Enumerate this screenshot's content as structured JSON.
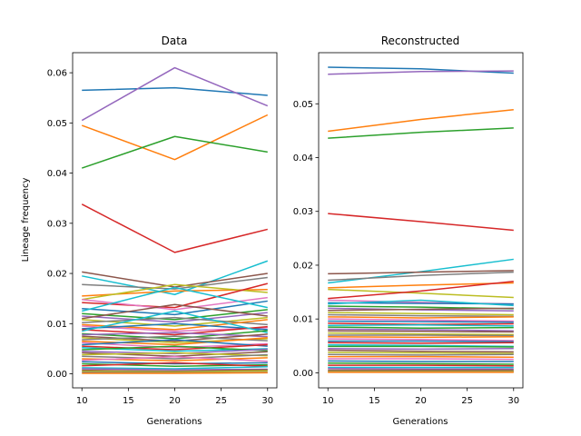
{
  "figure": {
    "background": "#ffffff"
  },
  "chart_data": [
    {
      "type": "line",
      "title": "Data",
      "xlabel": "Generations",
      "ylabel": "Lineage frequency",
      "x": [
        10,
        20,
        30
      ],
      "xlim": [
        9,
        31
      ],
      "ylim": [
        -0.0028,
        0.064
      ],
      "xticks": [
        "10",
        "15",
        "20",
        "25",
        "30"
      ],
      "yticks": [
        "0.00",
        "0.01",
        "0.02",
        "0.03",
        "0.04",
        "0.05",
        "0.06"
      ],
      "grid": false,
      "legend": "none",
      "series": [
        {
          "color": "#1f77b4",
          "values": [
            0.0565,
            0.057,
            0.0555
          ]
        },
        {
          "color": "#9467bd",
          "values": [
            0.0505,
            0.061,
            0.0534
          ]
        },
        {
          "color": "#ff7f0e",
          "values": [
            0.0495,
            0.0427,
            0.0516
          ]
        },
        {
          "color": "#2ca02c",
          "values": [
            0.041,
            0.0473,
            0.0442
          ]
        },
        {
          "color": "#d62728",
          "values": [
            0.0338,
            0.0242,
            0.0288
          ]
        },
        {
          "color": "#17becf",
          "values": [
            0.0195,
            0.0158,
            0.0225
          ]
        },
        {
          "color": "#8c564b",
          "values": [
            0.0203,
            0.0173,
            0.02
          ]
        },
        {
          "color": "#7f7f7f",
          "values": [
            0.0178,
            0.0169,
            0.0192
          ]
        },
        {
          "color": "#ff7f0e",
          "values": [
            0.0155,
            0.0165,
            0.0168
          ]
        },
        {
          "color": "#bcbd22",
          "values": [
            0.0148,
            0.0178,
            0.0162
          ]
        },
        {
          "color": "#d62728",
          "values": [
            0.0142,
            0.0132,
            0.018
          ]
        },
        {
          "color": "#e377c2",
          "values": [
            0.0148,
            0.0128,
            0.0152
          ]
        },
        {
          "color": "#1f77b4",
          "values": [
            0.013,
            0.0118,
            0.0145
          ]
        },
        {
          "color": "#17becf",
          "values": [
            0.0125,
            0.0172,
            0.0132
          ]
        },
        {
          "color": "#2ca02c",
          "values": [
            0.012,
            0.0108,
            0.0128
          ]
        },
        {
          "color": "#9467bd",
          "values": [
            0.0115,
            0.0103,
            0.0122
          ]
        },
        {
          "color": "#8c564b",
          "values": [
            0.011,
            0.0138,
            0.0115
          ]
        },
        {
          "color": "#bcbd22",
          "values": [
            0.0108,
            0.0095,
            0.0112
          ]
        },
        {
          "color": "#7f7f7f",
          "values": [
            0.0102,
            0.0112,
            0.0098
          ]
        },
        {
          "color": "#ff7f0e",
          "values": [
            0.0098,
            0.0088,
            0.0108
          ]
        },
        {
          "color": "#e377c2",
          "values": [
            0.0095,
            0.0085,
            0.0092
          ]
        },
        {
          "color": "#1f77b4",
          "values": [
            0.009,
            0.01,
            0.0088
          ]
        },
        {
          "color": "#d62728",
          "values": [
            0.0088,
            0.0078,
            0.0094
          ]
        },
        {
          "color": "#17becf",
          "values": [
            0.0085,
            0.0125,
            0.0082
          ]
        },
        {
          "color": "#2ca02c",
          "values": [
            0.008,
            0.007,
            0.0086
          ]
        },
        {
          "color": "#9467bd",
          "values": [
            0.0078,
            0.0082,
            0.0074
          ]
        },
        {
          "color": "#8c564b",
          "values": [
            0.0075,
            0.0065,
            0.0079
          ]
        },
        {
          "color": "#bcbd22",
          "values": [
            0.0072,
            0.0062,
            0.007
          ]
        },
        {
          "color": "#7f7f7f",
          "values": [
            0.0068,
            0.0075,
            0.0066
          ]
        },
        {
          "color": "#ff7f0e",
          "values": [
            0.0065,
            0.0058,
            0.0072
          ]
        },
        {
          "color": "#e377c2",
          "values": [
            0.0062,
            0.0052,
            0.006
          ]
        },
        {
          "color": "#1f77b4",
          "values": [
            0.0058,
            0.0068,
            0.0055
          ]
        },
        {
          "color": "#d62728",
          "values": [
            0.0055,
            0.0048,
            0.0058
          ]
        },
        {
          "color": "#17becf",
          "values": [
            0.0052,
            0.0045,
            0.005
          ]
        },
        {
          "color": "#2ca02c",
          "values": [
            0.0048,
            0.0055,
            0.0046
          ]
        },
        {
          "color": "#9467bd",
          "values": [
            0.0045,
            0.004,
            0.0049
          ]
        },
        {
          "color": "#8c564b",
          "values": [
            0.0042,
            0.0035,
            0.0044
          ]
        },
        {
          "color": "#bcbd22",
          "values": [
            0.0038,
            0.0042,
            0.0036
          ]
        },
        {
          "color": "#7f7f7f",
          "values": [
            0.0035,
            0.003,
            0.0038
          ]
        },
        {
          "color": "#ff7f0e",
          "values": [
            0.003,
            0.0026,
            0.0032
          ]
        },
        {
          "color": "#e377c2",
          "values": [
            0.0027,
            0.0034,
            0.0025
          ]
        },
        {
          "color": "#1f77b4",
          "values": [
            0.0024,
            0.002,
            0.0022
          ]
        },
        {
          "color": "#2ca02c",
          "values": [
            0.002,
            0.0015,
            0.0018
          ]
        },
        {
          "color": "#d62728",
          "values": [
            0.0016,
            0.0022,
            0.0015
          ]
        },
        {
          "color": "#17becf",
          "values": [
            0.0012,
            0.001,
            0.0014
          ]
        },
        {
          "color": "#9467bd",
          "values": [
            0.001,
            0.0008,
            0.0009
          ]
        },
        {
          "color": "#8c564b",
          "values": [
            0.0007,
            0.0005,
            0.0008
          ]
        },
        {
          "color": "#bcbd22",
          "values": [
            0.0005,
            0.0004,
            0.0006
          ]
        },
        {
          "color": "#7f7f7f",
          "values": [
            0.0003,
            0.0002,
            0.0003
          ]
        },
        {
          "color": "#ff7f0e",
          "values": [
            0.0001,
            0.0001,
            0.0002
          ]
        }
      ]
    },
    {
      "type": "line",
      "title": "Reconstructed",
      "xlabel": "Generations",
      "ylabel": "",
      "x": [
        10,
        20,
        30
      ],
      "xlim": [
        9,
        31
      ],
      "ylim": [
        -0.0028,
        0.0595
      ],
      "xticks": [
        "10",
        "15",
        "20",
        "25",
        "30"
      ],
      "yticks": [
        "0.00",
        "0.01",
        "0.02",
        "0.03",
        "0.04",
        "0.05"
      ],
      "grid": false,
      "legend": "none",
      "series": [
        {
          "color": "#1f77b4",
          "values": [
            0.0568,
            0.0565,
            0.0557
          ]
        },
        {
          "color": "#9467bd",
          "values": [
            0.0555,
            0.056,
            0.0561
          ]
        },
        {
          "color": "#ff7f0e",
          "values": [
            0.0449,
            0.0471,
            0.0489
          ]
        },
        {
          "color": "#2ca02c",
          "values": [
            0.0436,
            0.0447,
            0.0455
          ]
        },
        {
          "color": "#d62728",
          "values": [
            0.0296,
            0.0281,
            0.0265
          ]
        },
        {
          "color": "#17becf",
          "values": [
            0.0167,
            0.0188,
            0.0211
          ]
        },
        {
          "color": "#8c564b",
          "values": [
            0.0184,
            0.0187,
            0.019
          ]
        },
        {
          "color": "#7f7f7f",
          "values": [
            0.0172,
            0.0181,
            0.0187
          ]
        },
        {
          "color": "#ff7f0e",
          "values": [
            0.0158,
            0.0163,
            0.0167
          ]
        },
        {
          "color": "#bcbd22",
          "values": [
            0.0155,
            0.0148,
            0.014
          ]
        },
        {
          "color": "#d62728",
          "values": [
            0.0138,
            0.0152,
            0.017
          ]
        },
        {
          "color": "#e377c2",
          "values": [
            0.0135,
            0.0131,
            0.0128
          ]
        },
        {
          "color": "#1f77b4",
          "values": [
            0.013,
            0.0129,
            0.0128
          ]
        },
        {
          "color": "#17becf",
          "values": [
            0.0128,
            0.0135,
            0.0125
          ]
        },
        {
          "color": "#2ca02c",
          "values": [
            0.0124,
            0.0122,
            0.0119
          ]
        },
        {
          "color": "#9467bd",
          "values": [
            0.012,
            0.0117,
            0.0115
          ]
        },
        {
          "color": "#8c564b",
          "values": [
            0.0116,
            0.0118,
            0.012
          ]
        },
        {
          "color": "#bcbd22",
          "values": [
            0.0112,
            0.011,
            0.0108
          ]
        },
        {
          "color": "#7f7f7f",
          "values": [
            0.0108,
            0.0106,
            0.0105
          ]
        },
        {
          "color": "#ff7f0e",
          "values": [
            0.0104,
            0.0102,
            0.0104
          ]
        },
        {
          "color": "#e377c2",
          "values": [
            0.01,
            0.0098,
            0.0096
          ]
        },
        {
          "color": "#1f77b4",
          "values": [
            0.0096,
            0.0095,
            0.0094
          ]
        },
        {
          "color": "#d62728",
          "values": [
            0.0092,
            0.009,
            0.0091
          ]
        },
        {
          "color": "#17becf",
          "values": [
            0.0088,
            0.0089,
            0.0087
          ]
        },
        {
          "color": "#2ca02c",
          "values": [
            0.0085,
            0.0083,
            0.0084
          ]
        },
        {
          "color": "#9467bd",
          "values": [
            0.0081,
            0.008,
            0.0078
          ]
        },
        {
          "color": "#8c564b",
          "values": [
            0.0078,
            0.0077,
            0.0076
          ]
        },
        {
          "color": "#bcbd22",
          "values": [
            0.0074,
            0.0072,
            0.0071
          ]
        },
        {
          "color": "#7f7f7f",
          "values": [
            0.007,
            0.007,
            0.0069
          ]
        },
        {
          "color": "#ff7f0e",
          "values": [
            0.0067,
            0.0066,
            0.0067
          ]
        },
        {
          "color": "#e377c2",
          "values": [
            0.0063,
            0.0062,
            0.006
          ]
        },
        {
          "color": "#1f77b4",
          "values": [
            0.0059,
            0.0059,
            0.0058
          ]
        },
        {
          "color": "#d62728",
          "values": [
            0.0056,
            0.0055,
            0.0056
          ]
        },
        {
          "color": "#17becf",
          "values": [
            0.0052,
            0.0051,
            0.0049
          ]
        },
        {
          "color": "#2ca02c",
          "values": [
            0.0049,
            0.0049,
            0.0048
          ]
        },
        {
          "color": "#9467bd",
          "values": [
            0.0045,
            0.0044,
            0.0045
          ]
        },
        {
          "color": "#8c564b",
          "values": [
            0.0042,
            0.004,
            0.0039
          ]
        },
        {
          "color": "#bcbd22",
          "values": [
            0.0038,
            0.0037,
            0.0036
          ]
        },
        {
          "color": "#7f7f7f",
          "values": [
            0.0034,
            0.0033,
            0.0034
          ]
        },
        {
          "color": "#ff7f0e",
          "values": [
            0.003,
            0.003,
            0.0029
          ]
        },
        {
          "color": "#e377c2",
          "values": [
            0.0026,
            0.0026,
            0.0025
          ]
        },
        {
          "color": "#1f77b4",
          "values": [
            0.0022,
            0.0021,
            0.0021
          ]
        },
        {
          "color": "#2ca02c",
          "values": [
            0.0018,
            0.0017,
            0.0016
          ]
        },
        {
          "color": "#d62728",
          "values": [
            0.0014,
            0.0014,
            0.0013
          ]
        },
        {
          "color": "#17becf",
          "values": [
            0.001,
            0.001,
            0.001
          ]
        },
        {
          "color": "#9467bd",
          "values": [
            0.0008,
            0.0007,
            0.0007
          ]
        },
        {
          "color": "#8c564b",
          "values": [
            0.0005,
            0.0005,
            0.0005
          ]
        },
        {
          "color": "#bcbd22",
          "values": [
            0.0003,
            0.0003,
            0.0003
          ]
        },
        {
          "color": "#7f7f7f",
          "values": [
            0.0002,
            0.0002,
            0.0002
          ]
        },
        {
          "color": "#ff7f0e",
          "values": [
            0.0001,
            0.0001,
            0.0001
          ]
        }
      ]
    }
  ]
}
